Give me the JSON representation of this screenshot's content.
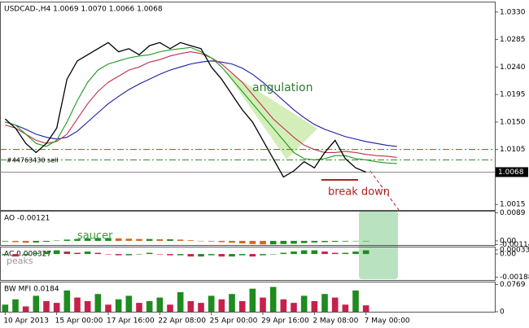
{
  "chart_data": [
    {
      "type": "line",
      "title": "USDCAD-,H4  1.0069 1.0070 1.0066 1.0068",
      "categories": [
        "10 Apr 2013",
        null,
        null,
        null,
        null,
        "15 Apr 00:00",
        null,
        null,
        null,
        null,
        "17 Apr 16:00",
        null,
        null,
        null,
        null,
        "22 Apr 08:00",
        null,
        null,
        null,
        null,
        "25 Apr 00:00",
        null,
        null,
        null,
        null,
        "29 Apr 16:00",
        null,
        null,
        null,
        null,
        "2 May 08:00",
        null,
        null,
        null,
        null,
        "7 May 00:00",
        null,
        null,
        null,
        null,
        null,
        null,
        null,
        null,
        null,
        null,
        null,
        null
      ],
      "series": [
        {
          "color": "#1a1aa8",
          "values": [
            1.015,
            1.0145,
            1.0138,
            1.013,
            1.0125,
            1.0122,
            1.0125,
            1.0135,
            1.015,
            1.0165,
            1.018,
            1.0192,
            1.0203,
            1.0212,
            1.022,
            1.0228,
            1.0235,
            1.024,
            1.0245,
            1.0248,
            1.025,
            1.0248,
            1.0245,
            1.0238,
            1.0228,
            1.0215,
            1.02,
            1.0185,
            1.017,
            1.0157,
            1.0146,
            1.0138,
            1.0132,
            1.0126,
            1.0122,
            1.0118,
            1.0115,
            1.0112,
            1.011,
            null,
            null,
            null,
            null,
            null,
            null,
            null,
            null,
            null
          ]
        },
        {
          "color": "#c0304a",
          "values": [
            1.0145,
            1.014,
            1.013,
            1.012,
            1.0115,
            1.0118,
            1.013,
            1.0155,
            1.018,
            1.02,
            1.0215,
            1.0225,
            1.0235,
            1.024,
            1.0248,
            1.0252,
            1.0258,
            1.0262,
            1.0265,
            1.0262,
            1.0255,
            1.0245,
            1.023,
            1.0215,
            1.0195,
            1.0175,
            1.0155,
            1.014,
            1.0125,
            1.0112,
            1.0105,
            1.01,
            1.01,
            1.0102,
            1.01,
            1.0097,
            1.0095,
            1.0094,
            1.0092,
            null,
            null,
            null,
            null,
            null,
            null,
            null,
            null,
            null
          ]
        },
        {
          "color": "#1e9a1e",
          "values": [
            1.015,
            1.0145,
            1.013,
            1.0115,
            1.011,
            1.012,
            1.015,
            1.0185,
            1.0215,
            1.0235,
            1.0245,
            1.025,
            1.0255,
            1.0258,
            1.026,
            1.0265,
            1.0268,
            1.027,
            1.0272,
            1.0265,
            1.0255,
            1.024,
            1.022,
            1.02,
            1.018,
            1.016,
            1.014,
            1.012,
            1.01,
            1.009,
            1.0088,
            1.009,
            1.0095,
            1.0095,
            1.009,
            1.0088,
            1.0085,
            1.0083,
            1.0082,
            null,
            null,
            null,
            null,
            null,
            null,
            null,
            null,
            null
          ]
        },
        {
          "color": "#000000",
          "values": [
            1.0155,
            1.014,
            1.0115,
            1.01,
            1.0115,
            1.014,
            1.022,
            1.025,
            1.026,
            1.027,
            1.028,
            1.0265,
            1.027,
            1.026,
            1.0275,
            1.028,
            1.027,
            1.028,
            1.0275,
            1.027,
            1.024,
            1.022,
            1.0195,
            1.017,
            1.015,
            1.012,
            1.009,
            1.006,
            1.007,
            1.0085,
            1.0075,
            1.01,
            1.012,
            1.009,
            1.0075,
            1.0068,
            null,
            null,
            null,
            null,
            null,
            null,
            null,
            null,
            null,
            null,
            null,
            null
          ]
        }
      ],
      "levels": [
        {
          "value": 1.0105,
          "color": "#c0392b"
        },
        {
          "value": 1.0088,
          "color": "#2e8b2e"
        }
      ],
      "current_price": 1.0068,
      "annotations": [
        "angulation",
        "break down",
        "#44763430 sell"
      ],
      "ylim": [
        1.0006,
        1.0347
      ],
      "yticks": [
        {
          "value": 1.033,
          "label": "1.0330"
        },
        1.0285,
        {
          "value": 1.024,
          "label": "1.0240"
        },
        1.0195,
        {
          "value": 1.015,
          "label": "1.0150"
        },
        1.0105,
        1.0015
      ]
    },
    {
      "type": "bar",
      "title": "AO -0.00121",
      "up_color": "#1e8c1e",
      "down_color": "#d2691e",
      "values": [
        -0.0002,
        -0.0004,
        -0.0006,
        -0.0005,
        -0.0003,
        0.0001,
        0.0004,
        0.0006,
        0.0008,
        0.0009,
        0.0009,
        0.0008,
        0.0007,
        0.0006,
        0.0006,
        0.0005,
        0.0005,
        0.0004,
        0.0002,
        0.0,
        -0.0002,
        -0.0004,
        -0.0006,
        -0.0008,
        -0.001,
        -0.0011,
        -0.0011,
        -0.001,
        -0.0009,
        -0.0007,
        -0.0005,
        -0.0004,
        -0.0003,
        -0.0002,
        -0.0001,
        0.0
      ],
      "annotations": [
        "saucer"
      ],
      "ylim": [
        -0.0013,
        0.0095
      ],
      "yticks": [
        0.0089,
        {
          "value": 0,
          "label": "0.00"
        },
        -0.00114
      ]
    },
    {
      "type": "bar",
      "title": "AC 0.000327",
      "up_color": "#1e8c1e",
      "down_color": "#c8204a",
      "values": [
        -0.0001,
        -0.0002,
        -0.0001,
        0.0001,
        0.0002,
        0.0003,
        0.0002,
        0.0001,
        0.0002,
        0.0001,
        0.0,
        -0.0001,
        -0.0001,
        0.0,
        0.0001,
        0.0,
        -0.0001,
        -0.0001,
        -0.0002,
        -0.0002,
        -0.0001,
        -0.0002,
        -0.0002,
        -0.0001,
        -0.0002,
        -0.0001,
        0.0,
        0.0001,
        0.0002,
        0.0003,
        0.0003,
        0.0002,
        0.0001,
        0.0001,
        0.0002,
        0.0003
      ],
      "annotations": [
        "peaks"
      ],
      "ylim": [
        -0.0021,
        0.0006
      ],
      "yticks": [
        0.000334,
        {
          "value": 0,
          "label": "0.00"
        },
        -0.00188
      ]
    },
    {
      "type": "bar",
      "title": "BW MFI 0.0184",
      "up_color": "#1e8c1e",
      "down_color": "#c8204a",
      "values": [
        0.02,
        0.035,
        0.015,
        0.045,
        0.03,
        0.025,
        0.06,
        0.04,
        0.03,
        0.05,
        0.02,
        0.035,
        0.045,
        0.025,
        0.03,
        0.04,
        0.02,
        0.055,
        0.03,
        0.025,
        0.045,
        0.035,
        0.05,
        0.03,
        0.065,
        0.04,
        0.07,
        0.035,
        0.025,
        0.045,
        0.03,
        0.05,
        0.04,
        0.02,
        0.06,
        0.018
      ],
      "ylim": [
        0,
        0.085
      ],
      "yticks": [
        0.0769,
        0
      ]
    }
  ]
}
